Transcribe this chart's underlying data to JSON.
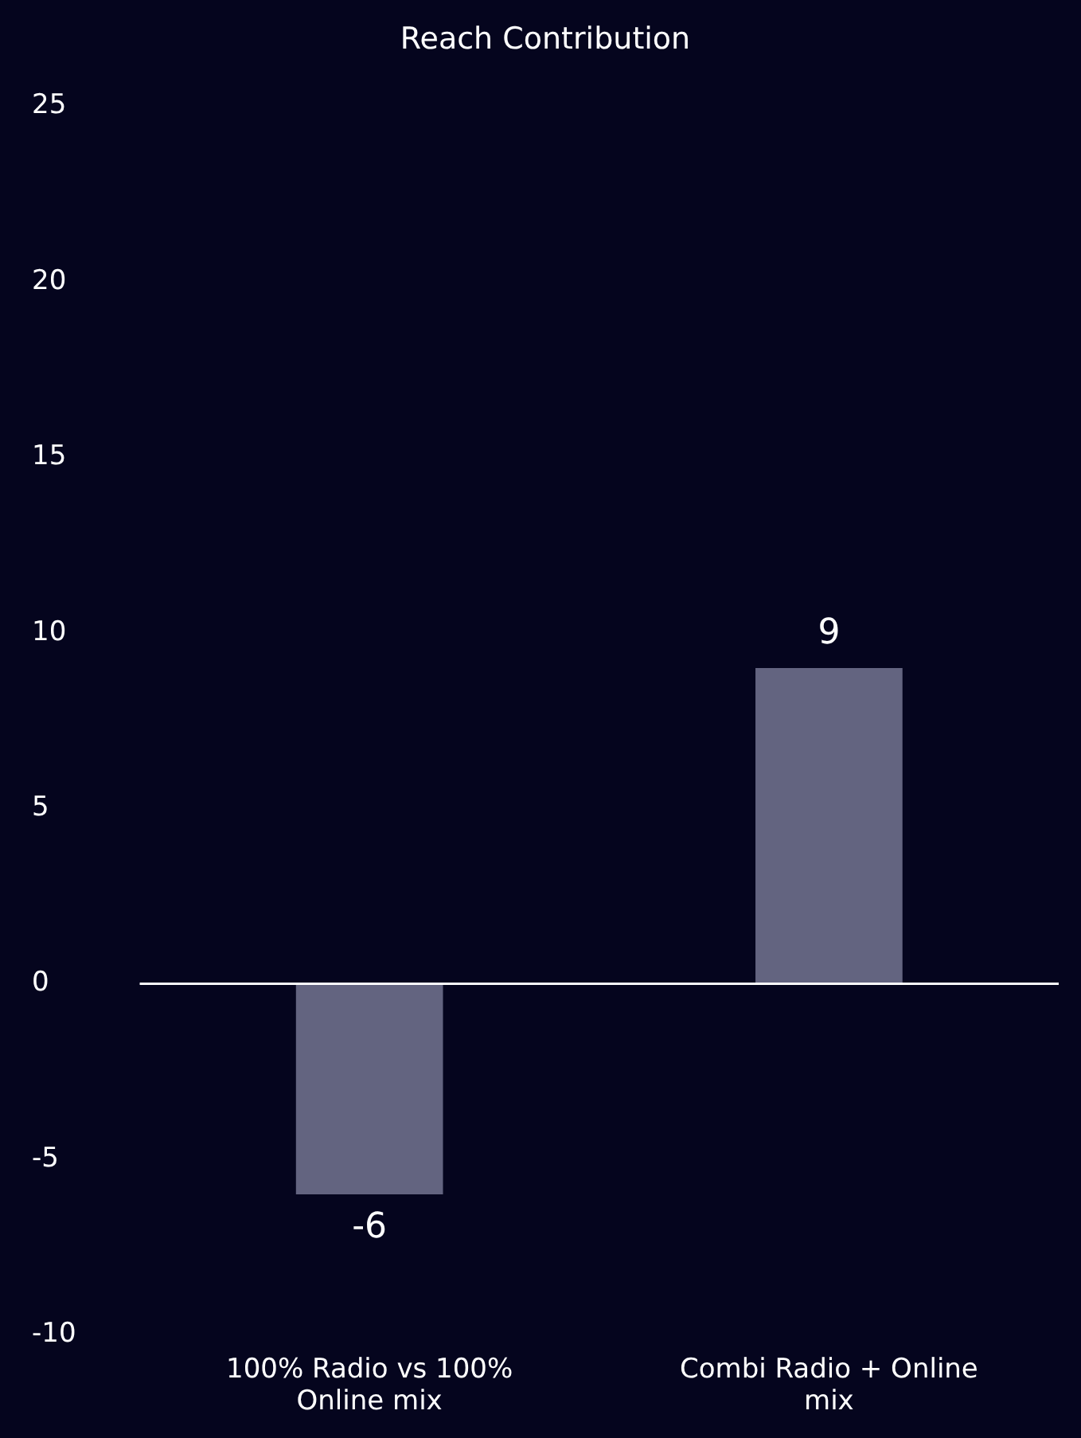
{
  "chart_data": {
    "type": "bar",
    "title": "Reach Contribution",
    "categories": [
      "100% Radio vs 100% Online mix",
      "Combi Radio + Online mix"
    ],
    "values": [
      -6,
      9
    ],
    "color": "#636480",
    "ylim": [
      -10,
      25
    ],
    "yticks": [
      -10,
      -5,
      0,
      5,
      10,
      15,
      20,
      25
    ],
    "data_labels": true
  }
}
